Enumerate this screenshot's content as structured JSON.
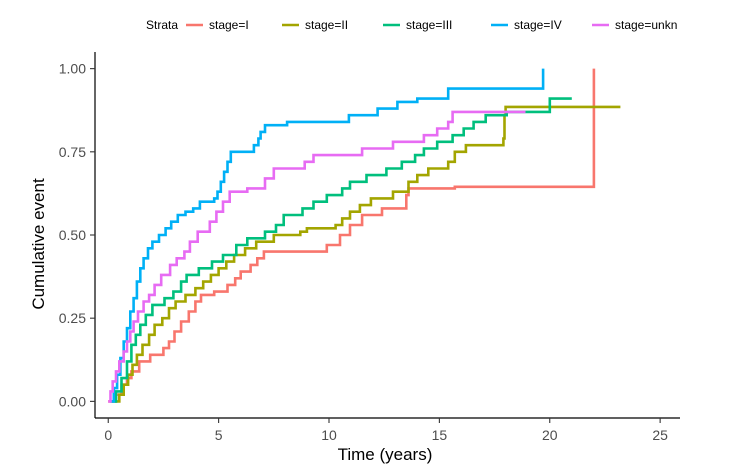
{
  "chart_data": {
    "type": "line",
    "step": true,
    "title": "",
    "xlabel": "Time (years)",
    "ylabel": "Cumulative event",
    "xlim": [
      -0.6,
      25.9
    ],
    "ylim": [
      -0.05,
      1.05
    ],
    "x_ticks": [
      0,
      5,
      10,
      15,
      20,
      25
    ],
    "x_tick_labels": [
      "0",
      "5",
      "10",
      "15",
      "20",
      "25"
    ],
    "y_ticks": [
      0,
      0.25,
      0.5,
      0.75,
      1.0
    ],
    "y_tick_labels": [
      "0.00",
      "0.25",
      "0.50",
      "0.75",
      "1.00"
    ],
    "grid": false,
    "legend": {
      "position": "top",
      "title": "Strata",
      "entries": [
        "stage=I",
        "stage=II",
        "stage=III",
        "stage=IV",
        "stage=unkn"
      ]
    },
    "series": [
      {
        "name": "stage=I",
        "color": "#F8766D",
        "points": [
          [
            0,
            0
          ],
          [
            0.35,
            0.02
          ],
          [
            0.6,
            0.05
          ],
          [
            0.85,
            0.07
          ],
          [
            1.05,
            0.09
          ],
          [
            1.4,
            0.12
          ],
          [
            1.9,
            0.14
          ],
          [
            2.5,
            0.16
          ],
          [
            2.75,
            0.18
          ],
          [
            3.0,
            0.21
          ],
          [
            3.3,
            0.24
          ],
          [
            3.65,
            0.27
          ],
          [
            3.95,
            0.3
          ],
          [
            4.2,
            0.32
          ],
          [
            4.8,
            0.33
          ],
          [
            5.4,
            0.35
          ],
          [
            5.75,
            0.37
          ],
          [
            6.0,
            0.39
          ],
          [
            6.45,
            0.41
          ],
          [
            6.75,
            0.43
          ],
          [
            7.05,
            0.45
          ],
          [
            9.9,
            0.47
          ],
          [
            10.5,
            0.5
          ],
          [
            10.95,
            0.53
          ],
          [
            11.5,
            0.56
          ],
          [
            12.4,
            0.58
          ],
          [
            13.5,
            0.62
          ],
          [
            13.6,
            0.64
          ],
          [
            15.7,
            0.645
          ],
          [
            22.0,
            0.645
          ],
          [
            22.0,
            1.0
          ]
        ]
      },
      {
        "name": "stage=II",
        "color": "#A3A500",
        "points": [
          [
            0.3,
            0
          ],
          [
            0.5,
            0.02
          ],
          [
            0.7,
            0.05
          ],
          [
            0.9,
            0.08
          ],
          [
            1.1,
            0.11
          ],
          [
            1.3,
            0.14
          ],
          [
            1.55,
            0.17
          ],
          [
            1.85,
            0.2
          ],
          [
            2.1,
            0.23
          ],
          [
            2.45,
            0.25
          ],
          [
            2.75,
            0.28
          ],
          [
            3.05,
            0.3
          ],
          [
            3.5,
            0.32
          ],
          [
            3.95,
            0.34
          ],
          [
            4.3,
            0.36
          ],
          [
            4.65,
            0.38
          ],
          [
            5.0,
            0.4
          ],
          [
            5.35,
            0.42
          ],
          [
            5.7,
            0.44
          ],
          [
            6.2,
            0.46
          ],
          [
            6.7,
            0.48
          ],
          [
            7.5,
            0.5
          ],
          [
            8.7,
            0.51
          ],
          [
            9.0,
            0.52
          ],
          [
            10.3,
            0.53
          ],
          [
            10.6,
            0.55
          ],
          [
            10.95,
            0.57
          ],
          [
            11.4,
            0.59
          ],
          [
            11.9,
            0.61
          ],
          [
            12.9,
            0.63
          ],
          [
            13.6,
            0.66
          ],
          [
            14.0,
            0.68
          ],
          [
            14.5,
            0.7
          ],
          [
            15.4,
            0.72
          ],
          [
            15.7,
            0.75
          ],
          [
            16.2,
            0.77
          ],
          [
            17.9,
            0.79
          ],
          [
            17.95,
            0.86
          ],
          [
            18.0,
            0.885
          ],
          [
            23.2,
            0.885
          ]
        ]
      },
      {
        "name": "stage=III",
        "color": "#00BF7D",
        "points": [
          [
            0.1,
            0
          ],
          [
            0.35,
            0.03
          ],
          [
            0.6,
            0.07
          ],
          [
            0.85,
            0.12
          ],
          [
            1.05,
            0.17
          ],
          [
            1.25,
            0.2
          ],
          [
            1.45,
            0.23
          ],
          [
            1.7,
            0.26
          ],
          [
            2.0,
            0.29
          ],
          [
            2.55,
            0.31
          ],
          [
            2.95,
            0.33
          ],
          [
            3.3,
            0.36
          ],
          [
            3.55,
            0.38
          ],
          [
            4.1,
            0.4
          ],
          [
            4.7,
            0.42
          ],
          [
            5.2,
            0.44
          ],
          [
            5.8,
            0.47
          ],
          [
            6.3,
            0.49
          ],
          [
            7.1,
            0.51
          ],
          [
            7.6,
            0.53
          ],
          [
            7.95,
            0.56
          ],
          [
            8.8,
            0.58
          ],
          [
            9.3,
            0.6
          ],
          [
            9.9,
            0.62
          ],
          [
            10.6,
            0.64
          ],
          [
            10.95,
            0.66
          ],
          [
            11.7,
            0.68
          ],
          [
            12.6,
            0.7
          ],
          [
            13.3,
            0.72
          ],
          [
            13.9,
            0.74
          ],
          [
            14.3,
            0.76
          ],
          [
            14.9,
            0.78
          ],
          [
            15.6,
            0.8
          ],
          [
            16.1,
            0.82
          ],
          [
            16.55,
            0.84
          ],
          [
            17.1,
            0.86
          ],
          [
            18.05,
            0.87
          ],
          [
            20.0,
            0.91
          ],
          [
            21.0,
            0.91
          ]
        ]
      },
      {
        "name": "stage=IV",
        "color": "#00B0F6",
        "points": [
          [
            0.1,
            0
          ],
          [
            0.25,
            0.04
          ],
          [
            0.4,
            0.08
          ],
          [
            0.55,
            0.13
          ],
          [
            0.7,
            0.18
          ],
          [
            0.85,
            0.22
          ],
          [
            1.0,
            0.27
          ],
          [
            1.15,
            0.31
          ],
          [
            1.3,
            0.36
          ],
          [
            1.45,
            0.4
          ],
          [
            1.6,
            0.43
          ],
          [
            1.8,
            0.46
          ],
          [
            2.0,
            0.48
          ],
          [
            2.3,
            0.5
          ],
          [
            2.6,
            0.52
          ],
          [
            2.85,
            0.54
          ],
          [
            3.15,
            0.56
          ],
          [
            3.5,
            0.57
          ],
          [
            3.85,
            0.58
          ],
          [
            4.15,
            0.6
          ],
          [
            4.8,
            0.61
          ],
          [
            4.95,
            0.63
          ],
          [
            5.1,
            0.66
          ],
          [
            5.25,
            0.69
          ],
          [
            5.4,
            0.72
          ],
          [
            5.55,
            0.75
          ],
          [
            6.6,
            0.77
          ],
          [
            6.8,
            0.79
          ],
          [
            6.9,
            0.81
          ],
          [
            7.1,
            0.83
          ],
          [
            8.1,
            0.84
          ],
          [
            10.9,
            0.86
          ],
          [
            12.2,
            0.88
          ],
          [
            13.1,
            0.9
          ],
          [
            14.0,
            0.91
          ],
          [
            15.4,
            0.94
          ],
          [
            19.6,
            0.94
          ],
          [
            19.7,
            1.0
          ]
        ]
      },
      {
        "name": "stage=unkn",
        "color": "#E76BF3",
        "points": [
          [
            0,
            0
          ],
          [
            0.1,
            0.03
          ],
          [
            0.2,
            0.06
          ],
          [
            0.35,
            0.09
          ],
          [
            0.5,
            0.12
          ],
          [
            0.7,
            0.15
          ],
          [
            0.85,
            0.18
          ],
          [
            1.0,
            0.21
          ],
          [
            1.15,
            0.24
          ],
          [
            1.35,
            0.27
          ],
          [
            1.6,
            0.3
          ],
          [
            1.85,
            0.32
          ],
          [
            2.1,
            0.35
          ],
          [
            2.4,
            0.38
          ],
          [
            2.8,
            0.41
          ],
          [
            3.1,
            0.43
          ],
          [
            3.45,
            0.45
          ],
          [
            3.7,
            0.48
          ],
          [
            4.05,
            0.51
          ],
          [
            4.6,
            0.54
          ],
          [
            4.9,
            0.57
          ],
          [
            5.2,
            0.6
          ],
          [
            5.5,
            0.63
          ],
          [
            6.3,
            0.64
          ],
          [
            7.1,
            0.67
          ],
          [
            7.5,
            0.7
          ],
          [
            8.9,
            0.72
          ],
          [
            9.3,
            0.74
          ],
          [
            11.5,
            0.76
          ],
          [
            12.9,
            0.78
          ],
          [
            14.3,
            0.8
          ],
          [
            14.9,
            0.82
          ],
          [
            15.4,
            0.84
          ],
          [
            15.6,
            0.87
          ],
          [
            17.6,
            0.87
          ],
          [
            18.9,
            0.87
          ]
        ]
      }
    ]
  }
}
